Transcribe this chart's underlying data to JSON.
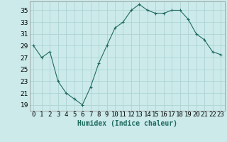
{
  "x": [
    0,
    1,
    2,
    3,
    4,
    5,
    6,
    7,
    8,
    9,
    10,
    11,
    12,
    13,
    14,
    15,
    16,
    17,
    18,
    19,
    20,
    21,
    22,
    23
  ],
  "y": [
    29,
    27,
    28,
    23,
    21,
    20,
    19,
    22,
    26,
    29,
    32,
    33,
    35,
    36,
    35,
    34.5,
    34.5,
    35,
    35,
    33.5,
    31,
    30,
    28,
    27.5
  ],
  "line_color": "#1f6b5e",
  "marker": "+",
  "marker_size": 3,
  "bg_color": "#cceaea",
  "grid_color": "#a8d0d0",
  "xlabel": "Humidex (Indice chaleur)",
  "ylim": [
    18,
    36.5
  ],
  "xlim": [
    -0.5,
    23.5
  ],
  "yticks": [
    19,
    21,
    23,
    25,
    27,
    29,
    31,
    33,
    35
  ],
  "xtick_labels": [
    "0",
    "1",
    "2",
    "3",
    "4",
    "5",
    "6",
    "7",
    "8",
    "9",
    "10",
    "11",
    "12",
    "13",
    "14",
    "15",
    "16",
    "17",
    "18",
    "19",
    "20",
    "21",
    "22",
    "23"
  ],
  "xlabel_fontsize": 7,
  "tick_fontsize": 6.5
}
